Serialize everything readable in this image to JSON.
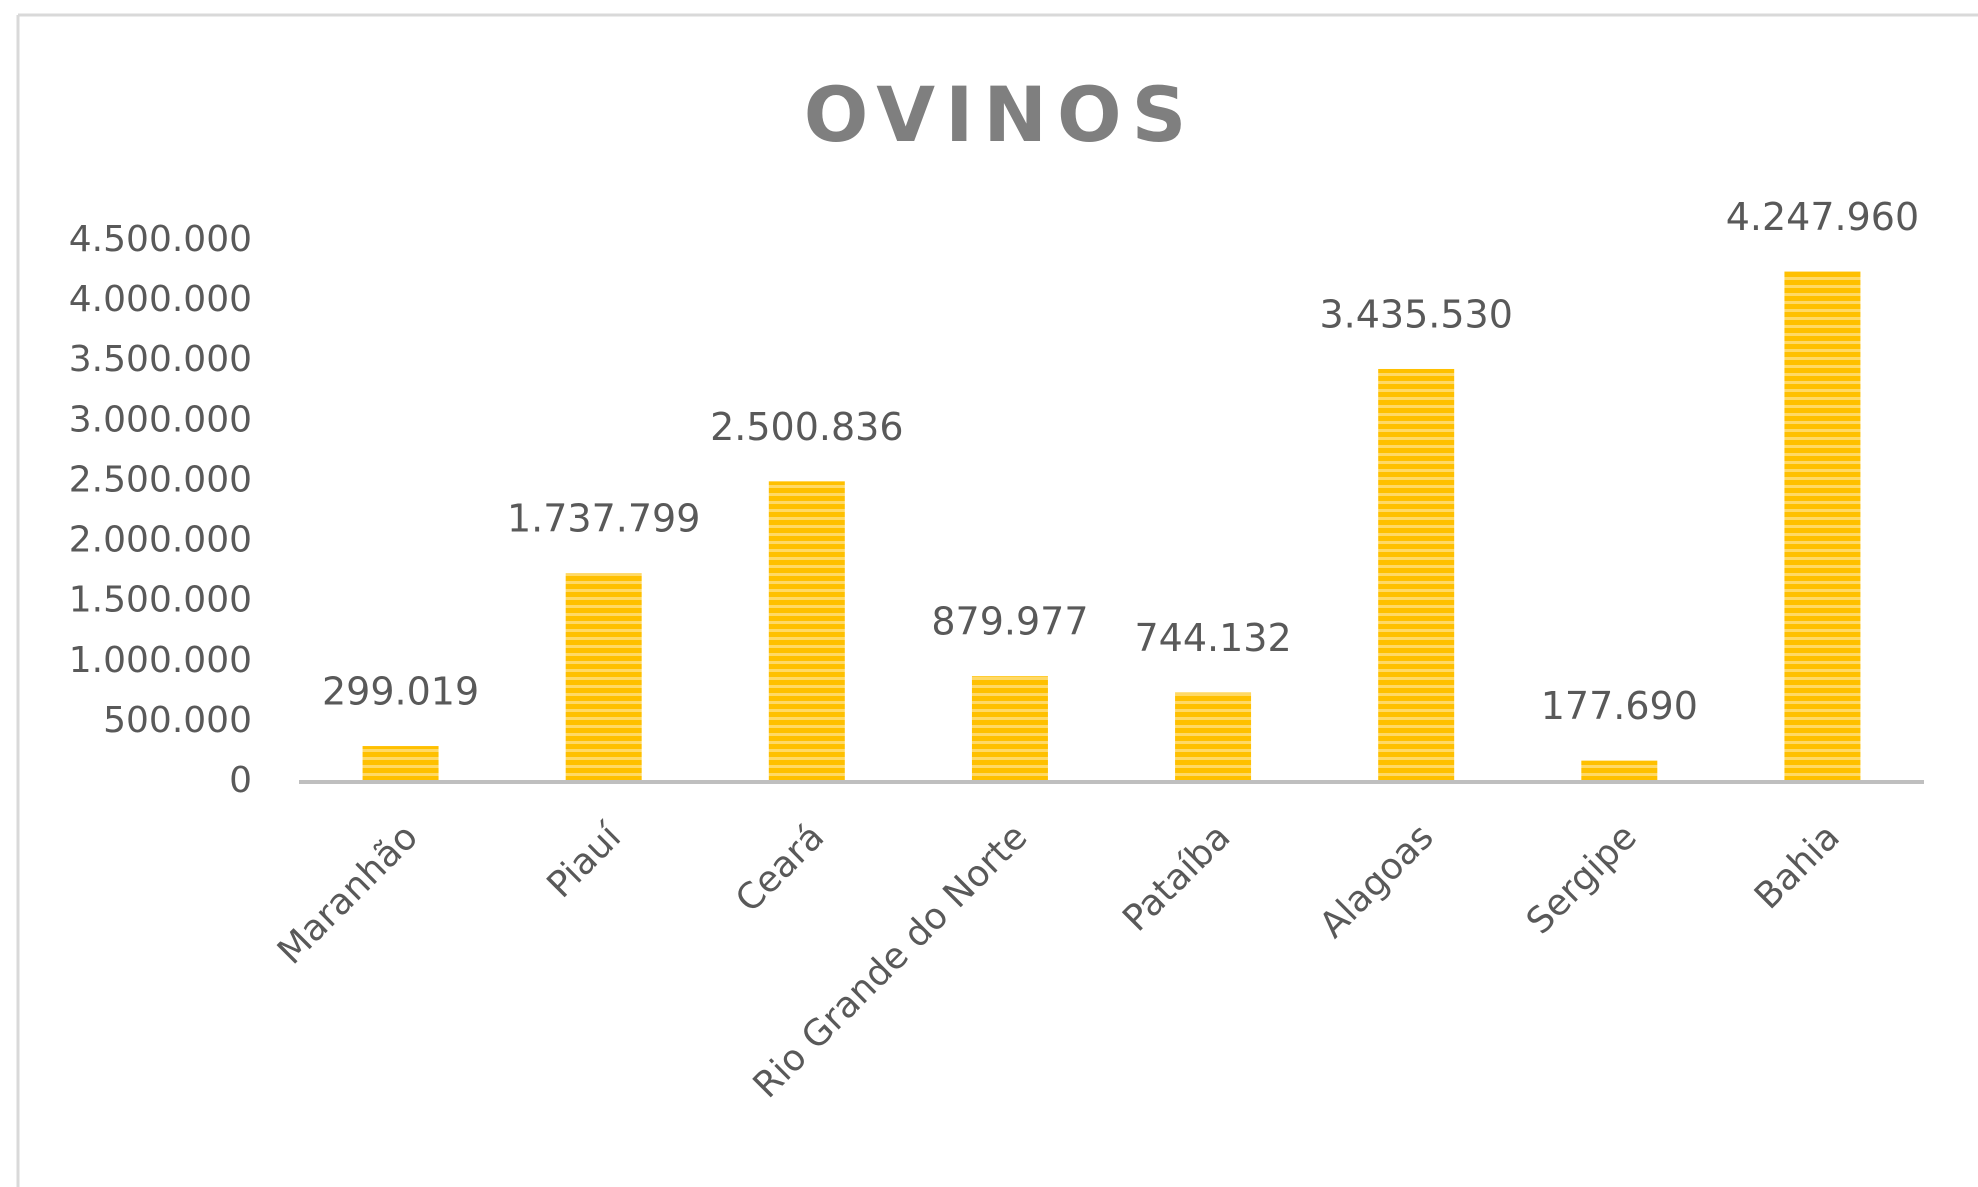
{
  "chart_data": {
    "type": "bar",
    "title": "OVINOS",
    "categories": [
      "Maranhão",
      "Piauí",
      "Ceará",
      "Rio Grande do Norte",
      "Pataíba",
      "Alagoas",
      "Sergipe",
      "Bahia"
    ],
    "values": [
      299019,
      1737799,
      2500836,
      879977,
      744132,
      3435530,
      177690,
      4247960
    ],
    "value_labels": [
      "299.019",
      "1.737.799",
      "2.500.836",
      "879.977",
      "744.132",
      "3.435.530",
      "177.690",
      "4.247.960"
    ],
    "color": "#ffc000",
    "ylim": [
      0,
      4500000
    ],
    "yticks": [
      0,
      {
        "value": 500000,
        "label": "500.000"
      },
      {
        "value": 1000000,
        "label": "1.000.000"
      },
      {
        "value": 1500000,
        "label": "1.500.000"
      },
      {
        "value": 2000000,
        "label": "2.000.000"
      },
      {
        "value": 2500000,
        "label": "2.500.000"
      },
      {
        "value": 3000000,
        "label": "3.000.000"
      },
      {
        "value": 3500000,
        "label": "3.500.000"
      },
      {
        "value": 4000000,
        "label": "4.000.000"
      },
      {
        "value": 4500000,
        "label": "4.500.000"
      }
    ],
    "grid": false
  }
}
